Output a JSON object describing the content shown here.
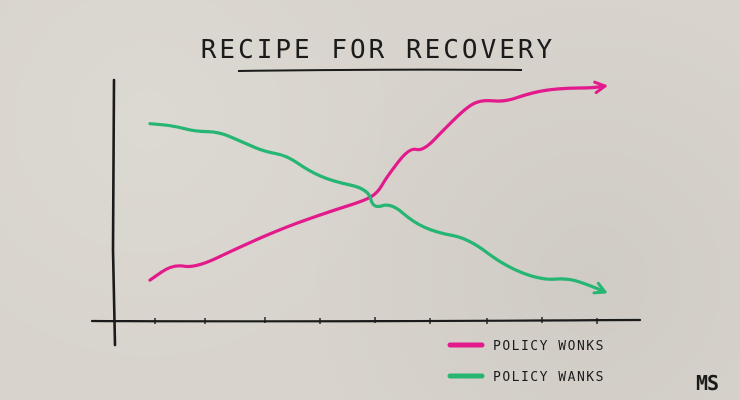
{
  "chart_data": {
    "type": "line",
    "title": "RECIPE FOR RECOVERY",
    "xlabel": "",
    "ylabel": "",
    "xlim": [
      0,
      100
    ],
    "ylim": [
      0,
      100
    ],
    "grid": false,
    "legend_position": "bottom-right",
    "series": [
      {
        "name": "POLICY WONKS",
        "color": "#e21a8c",
        "x": [
          0,
          5,
          10,
          20,
          30,
          40,
          47,
          50,
          52,
          57,
          60,
          65,
          70,
          73,
          78,
          83,
          87,
          92,
          97,
          100
        ],
        "y": [
          4,
          12,
          10,
          21,
          31,
          39,
          44,
          48,
          56,
          71,
          69,
          81,
          92,
          95,
          94,
          98,
          100,
          101,
          101,
          102
        ]
      },
      {
        "name": "POLICY WANKS",
        "color": "#27b574",
        "x": [
          0,
          5,
          10,
          15,
          20,
          25,
          30,
          35,
          40,
          48,
          49,
          53,
          58,
          63,
          70,
          78,
          86,
          92,
          97,
          100
        ],
        "y": [
          83,
          82,
          79,
          79,
          74,
          69,
          67,
          59,
          54,
          50,
          40,
          43,
          33,
          28,
          25,
          11,
          4,
          5,
          1,
          -2
        ]
      }
    ]
  },
  "logo_text": "MS"
}
